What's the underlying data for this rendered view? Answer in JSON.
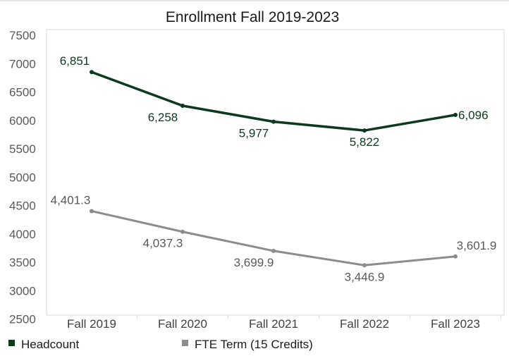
{
  "chart_data": {
    "type": "line",
    "title": "Enrollment Fall 2019-2023",
    "xlabel": "",
    "ylabel": "",
    "categories": [
      "Fall 2019",
      "Fall 2020",
      "Fall 2021",
      "Fall 2022",
      "Fall 2023"
    ],
    "ylim": [
      2400,
      7500
    ],
    "yticks": [
      "7500",
      "7000",
      "6500",
      "6000",
      "5500",
      "5000",
      "4500",
      "4000",
      "3500",
      "3000",
      "2500"
    ],
    "ytick_values": [
      7500,
      7000,
      6500,
      6000,
      5500,
      5000,
      4500,
      4000,
      3500,
      3000,
      2500
    ],
    "grid": false,
    "legend_position": "bottom",
    "series": [
      {
        "name": "Headcount",
        "color": "#0b3a1e",
        "values": [
          6851,
          6258,
          5977,
          5822,
          6096
        ],
        "labels": [
          "6,851",
          "6,258",
          "5,977",
          "5,822",
          "6,096"
        ],
        "label_sides": [
          "above",
          "below",
          "below",
          "below",
          "right"
        ]
      },
      {
        "name": "FTE Term (15 Credits)",
        "color": "#8c8c8c",
        "values": [
          4401.3,
          4037.3,
          3699.9,
          3446.9,
          3601.9
        ],
        "labels": [
          "4,401.3",
          "4,037.3",
          "3,699.9",
          "3,446.9",
          "3,601.9"
        ],
        "label_sides": [
          "above",
          "below",
          "below",
          "below",
          "above"
        ]
      }
    ]
  }
}
